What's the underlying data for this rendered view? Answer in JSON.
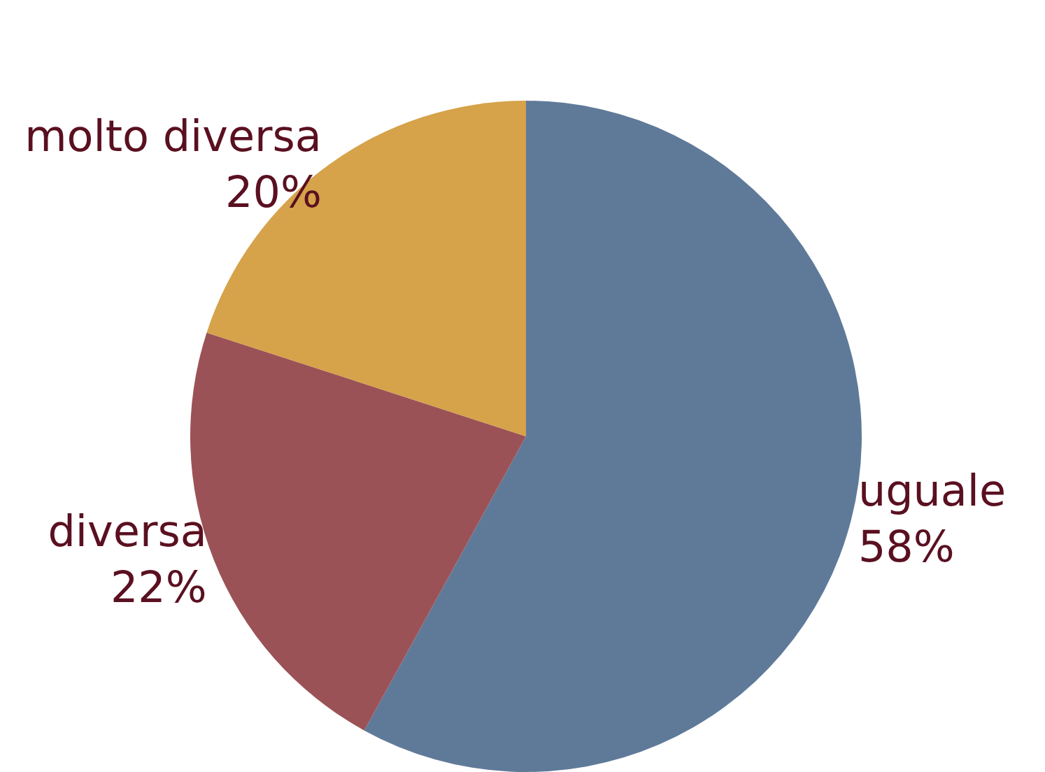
{
  "chart_data": {
    "type": "pie",
    "categories": [
      "uguale",
      "diversa",
      "molto diversa"
    ],
    "values": [
      58,
      22,
      20
    ],
    "colors": [
      "#5f7a99",
      "#9b5256",
      "#d6a24a"
    ],
    "value_labels": [
      "58%",
      "22%",
      "20%"
    ]
  }
}
